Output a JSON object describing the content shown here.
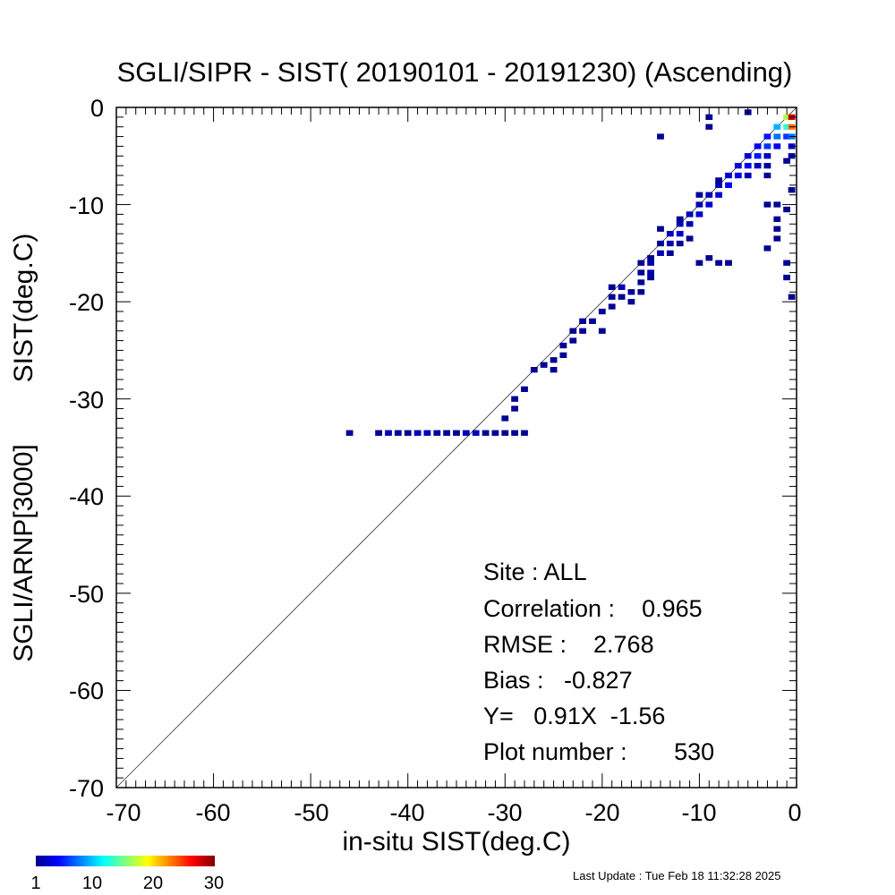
{
  "chart_data": {
    "type": "heatmap",
    "title": "SGLI/SIPR - SIST( 20190101 - 20191230) (Ascending)",
    "xlabel": "in-situ SIST(deg.C)",
    "ylabel_top": "SIST(deg.C)",
    "ylabel_bottom": "SGLI/ARNP[3000]",
    "xlim": [
      -70,
      0
    ],
    "ylim": [
      -70,
      0
    ],
    "x_tick_labels": [
      "-70",
      "-60",
      "-50",
      "-40",
      "-30",
      "-20",
      "-10",
      "0"
    ],
    "y_tick_labels": [
      "0",
      "-10",
      "-20",
      "-30",
      "-40",
      "-50",
      "-60",
      "-70"
    ],
    "reference_line": "1:1",
    "stats": [
      {
        "key": "site",
        "text": "Site : ALL"
      },
      {
        "key": "correlation",
        "text": "Correlation :    0.965"
      },
      {
        "key": "rmse",
        "text": "RMSE :    2.768"
      },
      {
        "key": "bias",
        "text": "Bias :   -0.827"
      },
      {
        "key": "fit",
        "text": "Y=   0.91X  -1.56"
      },
      {
        "key": "plot_number",
        "text": "Plot number :       530"
      }
    ],
    "colorbar": {
      "min": 1,
      "max": 30,
      "tick_labels": [
        "1",
        "10",
        "20",
        "30"
      ],
      "colormap": "jet"
    },
    "cell_size": 1,
    "cells": [
      [
        -46,
        -33.5,
        1
      ],
      [
        -43,
        -33.5,
        1
      ],
      [
        -42,
        -33.5,
        2
      ],
      [
        -41,
        -33.5,
        1
      ],
      [
        -40,
        -33.5,
        1
      ],
      [
        -39,
        -33.5,
        2
      ],
      [
        -38,
        -33.5,
        2
      ],
      [
        -37,
        -33.5,
        1
      ],
      [
        -36,
        -33.5,
        1
      ],
      [
        -35,
        -33.5,
        1
      ],
      [
        -34,
        -33.5,
        2
      ],
      [
        -33,
        -33.5,
        2
      ],
      [
        -32,
        -33.5,
        1
      ],
      [
        -31,
        -33.5,
        1
      ],
      [
        -30,
        -33.5,
        1
      ],
      [
        -29,
        -33.5,
        1
      ],
      [
        -28,
        -33.5,
        1
      ],
      [
        -30,
        -32,
        1
      ],
      [
        -29,
        -31,
        1
      ],
      [
        -29,
        -30,
        1
      ],
      [
        -28,
        -29,
        1
      ],
      [
        -27,
        -27,
        1
      ],
      [
        -26,
        -26.5,
        1
      ],
      [
        -25,
        -27,
        1
      ],
      [
        -25,
        -26,
        1
      ],
      [
        -24,
        -25.5,
        1
      ],
      [
        -24,
        -24.5,
        1
      ],
      [
        -23,
        -24,
        1
      ],
      [
        -23,
        -23,
        1
      ],
      [
        -22,
        -23,
        1
      ],
      [
        -22,
        -22,
        1
      ],
      [
        -21,
        -22,
        1
      ],
      [
        -20,
        -23,
        1
      ],
      [
        -20,
        -21,
        1
      ],
      [
        -19,
        -20.5,
        1
      ],
      [
        -19,
        -19.5,
        1
      ],
      [
        -19,
        -18.5,
        1
      ],
      [
        -18,
        -18.5,
        2
      ],
      [
        -18,
        -19.5,
        1
      ],
      [
        -17,
        -20,
        1
      ],
      [
        -16,
        -19,
        1
      ],
      [
        -16,
        -17,
        1
      ],
      [
        -16,
        -16,
        1
      ],
      [
        -15,
        -17,
        2
      ],
      [
        -15,
        -16,
        2
      ],
      [
        -14,
        -15,
        2
      ],
      [
        -14,
        -14,
        1
      ],
      [
        -13,
        -14,
        2
      ],
      [
        -13,
        -13,
        2
      ],
      [
        -12,
        -13,
        3
      ],
      [
        -12,
        -12,
        2
      ],
      [
        -14,
        -12.5,
        1
      ],
      [
        -12,
        -11.5,
        1
      ],
      [
        -11,
        -12,
        2
      ],
      [
        -11,
        -11,
        2
      ],
      [
        -10,
        -11,
        3
      ],
      [
        -10,
        -10,
        2
      ],
      [
        -10,
        -9,
        1
      ],
      [
        -9,
        -10,
        3
      ],
      [
        -9,
        -9,
        2
      ],
      [
        -8,
        -9,
        3
      ],
      [
        -8,
        -8,
        2
      ],
      [
        -8,
        -7.5,
        1
      ],
      [
        -7,
        -8,
        4
      ],
      [
        -7,
        -7,
        3
      ],
      [
        -6,
        -7,
        4
      ],
      [
        -6,
        -6,
        3
      ],
      [
        -5,
        -7,
        2
      ],
      [
        -5,
        -6,
        4
      ],
      [
        -5,
        -5,
        3
      ],
      [
        -4,
        -5,
        5
      ],
      [
        -4,
        -4,
        4
      ],
      [
        -4,
        -6,
        2
      ],
      [
        -3,
        -4,
        6
      ],
      [
        -3,
        -3,
        5
      ],
      [
        -3,
        -5,
        2
      ],
      [
        -2,
        -3,
        8
      ],
      [
        -2,
        -2,
        10
      ],
      [
        -2,
        -4,
        4
      ],
      [
        -1,
        -2,
        14
      ],
      [
        -1,
        -1,
        18
      ],
      [
        -1,
        -3,
        6
      ],
      [
        -0.5,
        -1,
        30
      ],
      [
        -0.5,
        -2,
        25
      ],
      [
        -0.5,
        -3,
        8
      ],
      [
        -15,
        -17.5,
        1
      ],
      [
        -16,
        -18,
        1
      ],
      [
        -17,
        -19,
        1
      ],
      [
        -15,
        -15.5,
        1
      ],
      [
        -11,
        -13.5,
        1
      ],
      [
        -12,
        -14,
        1
      ],
      [
        -13,
        -15,
        1
      ],
      [
        -10,
        -16,
        1
      ],
      [
        -9,
        -15.5,
        1
      ],
      [
        -8,
        -16,
        1
      ],
      [
        -7,
        -16,
        1
      ],
      [
        -3,
        -7,
        1
      ],
      [
        -3,
        -6,
        1
      ],
      [
        -14,
        -3,
        1
      ],
      [
        -9,
        -1,
        1
      ],
      [
        -9,
        -2,
        1
      ],
      [
        -5,
        -0.5,
        1
      ],
      [
        -3,
        -10,
        1
      ],
      [
        -2,
        -10,
        1
      ],
      [
        -1,
        -10.5,
        1
      ],
      [
        -2,
        -11.5,
        1
      ],
      [
        -2,
        -12.5,
        1
      ],
      [
        -2,
        -13.5,
        1
      ],
      [
        -3,
        -14.5,
        1
      ],
      [
        -1,
        -16,
        1
      ],
      [
        -1,
        -17.5,
        1
      ],
      [
        -0.5,
        -19.5,
        1
      ],
      [
        -0.5,
        -8.5,
        1
      ],
      [
        -0.5,
        -5,
        2
      ],
      [
        -0.5,
        -4,
        3
      ],
      [
        -1,
        -5.5,
        1
      ]
    ]
  },
  "footer": {
    "last_update": "Last Update : Tue Feb 18 11:32:28 2025"
  }
}
